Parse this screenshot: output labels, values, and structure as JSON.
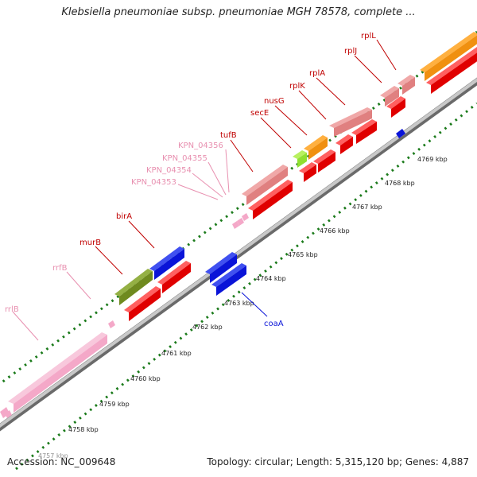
{
  "title": "Klebsiella pneumoniae subsp. pneumoniae MGH 78578, complete ...",
  "footer": {
    "accession": "Accession: NC_009648",
    "summary": "Topology: circular; Length: 5,315,120 bp; Genes: 4,887"
  },
  "scale": {
    "ticks": [
      "4757 kbp",
      "4758 kbp",
      "4759 kbp",
      "4760 kbp",
      "4761 kbp",
      "4762 kbp",
      "4763 kbp",
      "4764 kbp",
      "4765 kbp",
      "4766 kbp",
      "4767 kbp",
      "4768 kbp",
      "4769 kbp"
    ]
  },
  "gene_labels": {
    "rplL": "rplL",
    "rplJ": "rplJ",
    "rplA": "rplA",
    "rplK": "rplK",
    "nusG": "nusG",
    "secE": "secE",
    "tufB": "tufB",
    "kpn04356": "KPN_04356",
    "kpn04355": "KPN_04355",
    "kpn04354": "KPN_04354",
    "kpn04353": "KPN_04353",
    "birA": "birA",
    "murB": "murB",
    "rrfB": "rrfB",
    "rrlB": "rrlB",
    "coaA": "coaA"
  },
  "colors": {
    "protein_coding": "#e00000",
    "protein_coding_label": "#c00000",
    "rna": "#f4a8c8",
    "rna_label": "#e890b0",
    "highlight_blue": "#0a14d8",
    "olive": "#6f8a1f",
    "orange": "#f09010",
    "lime": "#90e030",
    "salmon": "#e08080",
    "backbone": "#909090",
    "tick_green": "#1a7a1a"
  }
}
